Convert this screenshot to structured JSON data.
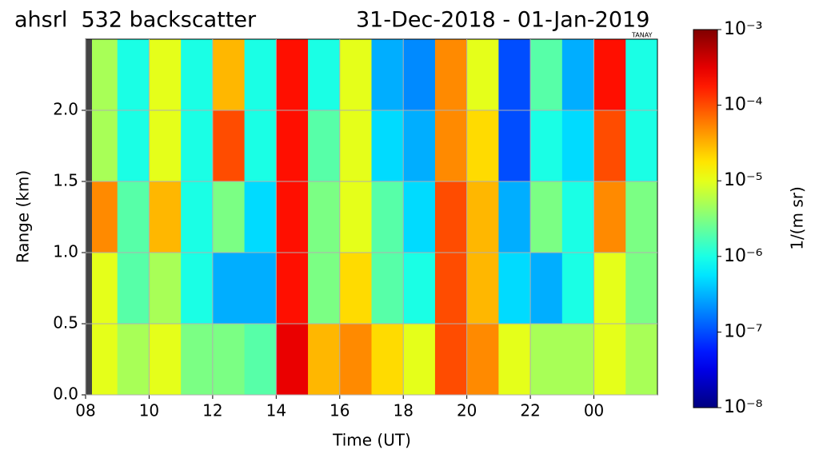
{
  "chart_data": {
    "type": "heatmap",
    "title": "ahsrl  532 backscatter",
    "subtitle": "31-Dec-2018 - 01-Jan-2019",
    "annotation": "TANAY",
    "x_label": "Time (UT)",
    "y_label": "Range (km)",
    "colorbar_label": "1/(m sr)",
    "x_bins": [
      8,
      9,
      10,
      11,
      12,
      13,
      14,
      15,
      16,
      17,
      18,
      19,
      20,
      21,
      22,
      23,
      24,
      25,
      26
    ],
    "y_bins": [
      0,
      0.5,
      1,
      1.5,
      2,
      2.5
    ],
    "z": [
      [
        1e-05,
        5e-06,
        1e-05,
        3e-06,
        3e-06,
        2e-06,
        0.0003,
        3e-05,
        5e-05,
        2e-05,
        1e-05,
        0.0001,
        5e-05,
        1e-05,
        5e-06,
        5e-06,
        1e-05,
        5e-06
      ],
      [
        1e-05,
        2e-06,
        5e-06,
        1e-06,
        3e-07,
        3e-07,
        0.0002,
        3e-06,
        2e-05,
        2e-06,
        1e-06,
        0.0001,
        3e-05,
        5e-07,
        3e-07,
        1e-06,
        1e-05,
        3e-06
      ],
      [
        5e-05,
        2e-06,
        3e-05,
        1e-06,
        3e-06,
        5e-07,
        0.0002,
        3e-06,
        1e-05,
        2e-06,
        5e-07,
        0.0001,
        3e-05,
        3e-07,
        3e-06,
        1e-06,
        5e-05,
        3e-06
      ],
      [
        5e-06,
        1e-06,
        1e-05,
        1e-06,
        0.0001,
        1e-06,
        0.0002,
        2e-06,
        1e-05,
        5e-07,
        3e-07,
        5e-05,
        2e-05,
        1e-07,
        1e-06,
        5e-07,
        0.0001,
        1e-06
      ],
      [
        5e-06,
        1e-06,
        1e-05,
        1e-06,
        3e-05,
        1e-06,
        0.0002,
        1e-06,
        1e-05,
        3e-07,
        2e-07,
        5e-05,
        1e-05,
        1e-07,
        2e-06,
        3e-07,
        0.0002,
        1e-06
      ]
    ],
    "xlim": [
      8,
      26
    ],
    "xticks": [
      {
        "value": 8,
        "label": "08"
      },
      10,
      12,
      14,
      16,
      18,
      20,
      22,
      {
        "value": 24,
        "label": "00"
      }
    ],
    "ylim": [
      0,
      2.5
    ],
    "yticks": [
      {
        "value": 0,
        "label": "0.0"
      },
      0.5,
      {
        "value": 1,
        "label": "1.0"
      },
      1.5,
      {
        "value": 2,
        "label": "2.0"
      }
    ],
    "clim": [
      1e-08,
      0.001
    ],
    "color_scale": "log",
    "colormap": "jet",
    "cticks": [
      {
        "value": 1e-08,
        "label": "10⁻⁸"
      },
      {
        "value": 1e-07,
        "label": "10⁻⁷"
      },
      {
        "value": 1e-06,
        "label": "10⁻⁶"
      },
      {
        "value": 1e-05,
        "label": "10⁻⁵"
      },
      {
        "value": 0.0001,
        "label": "10⁻⁴"
      },
      {
        "value": 0.001,
        "label": "10⁻³"
      }
    ],
    "grid": true
  }
}
